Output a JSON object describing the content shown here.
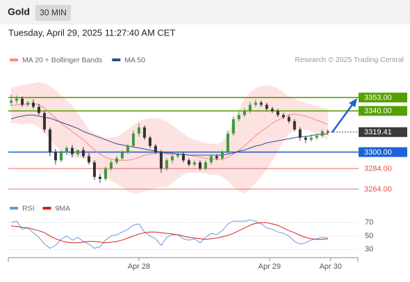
{
  "header": {
    "symbol": "Gold",
    "interval": "30 MIN",
    "timestamp": "Tuesday, April 29, 2025 11:27:40 AM CET"
  },
  "chart_data": [
    {
      "type": "candlestick",
      "legend": [
        {
          "name": "MA 20 + Bollinger Bands",
          "color": "#f08a8a"
        },
        {
          "name": "MA 50",
          "color": "#2b4d8c"
        }
      ],
      "credit": "Research © 2025 Trading Central",
      "xlim": [
        -0.5,
        62.4
      ],
      "xticks": [
        {
          "value": 23,
          "label": "Apr 28"
        },
        {
          "value": 46.5,
          "label": "Apr 29"
        },
        {
          "value": 57.5,
          "label": "Apr 30"
        }
      ],
      "ylim": [
        3257,
        3372
      ],
      "up_color": "#3c9a3c",
      "down_color": "#333333",
      "open": [
        3348,
        3350,
        3352,
        3346,
        3348,
        3344,
        3338,
        3322,
        3300,
        3292,
        3300,
        3304,
        3298,
        3302,
        3296,
        3290,
        3276,
        3274,
        3284,
        3290,
        3294,
        3300,
        3306,
        3318,
        3324,
        3314,
        3306,
        3300,
        3284,
        3292,
        3296,
        3298,
        3292,
        3288,
        3290,
        3284,
        3290,
        3296,
        3294,
        3300,
        3318,
        3332,
        3336,
        3340,
        3346,
        3348,
        3346,
        3342,
        3340,
        3336,
        3334,
        3330,
        3322,
        3314,
        3312,
        3314,
        3316,
        3320
      ],
      "high": [
        3356,
        3355,
        3354,
        3350,
        3351,
        3347,
        3340,
        3324,
        3303,
        3302,
        3306,
        3307,
        3301,
        3305,
        3299,
        3292,
        3279,
        3286,
        3292,
        3296,
        3302,
        3308,
        3321,
        3328,
        3326,
        3316,
        3308,
        3302,
        3294,
        3298,
        3300,
        3300,
        3294,
        3292,
        3292,
        3292,
        3298,
        3298,
        3302,
        3321,
        3335,
        3339,
        3343,
        3349,
        3351,
        3350,
        3348,
        3344,
        3342,
        3338,
        3336,
        3332,
        3324,
        3316,
        3317,
        3318,
        3322,
        3322
      ],
      "low": [
        3345,
        3347,
        3344,
        3344,
        3342,
        3336,
        3319,
        3296,
        3288,
        3290,
        3297,
        3295,
        3296,
        3294,
        3288,
        3273,
        3270,
        3272,
        3282,
        3288,
        3292,
        3298,
        3304,
        3315,
        3312,
        3304,
        3298,
        3280,
        3282,
        3289,
        3294,
        3290,
        3286,
        3286,
        3282,
        3282,
        3288,
        3292,
        3292,
        3298,
        3316,
        3330,
        3334,
        3338,
        3344,
        3344,
        3340,
        3338,
        3334,
        3332,
        3328,
        3320,
        3311,
        3309,
        3310,
        3312,
        3314,
        3317
      ],
      "close": [
        3350,
        3352,
        3346,
        3348,
        3344,
        3338,
        3322,
        3300,
        3292,
        3300,
        3304,
        3298,
        3302,
        3296,
        3290,
        3276,
        3274,
        3284,
        3290,
        3294,
        3300,
        3306,
        3318,
        3324,
        3314,
        3306,
        3300,
        3284,
        3292,
        3296,
        3298,
        3292,
        3288,
        3290,
        3284,
        3290,
        3296,
        3294,
        3300,
        3318,
        3332,
        3336,
        3340,
        3346,
        3348,
        3346,
        3342,
        3340,
        3336,
        3334,
        3330,
        3322,
        3314,
        3312,
        3314,
        3316,
        3320,
        3319.41
      ],
      "ma20": [
        3345,
        3346,
        3346,
        3347,
        3347,
        3346,
        3343,
        3338,
        3333,
        3328,
        3324,
        3320,
        3316,
        3312,
        3307,
        3302,
        3298,
        3295,
        3293,
        3292,
        3292,
        3292,
        3293,
        3295,
        3297,
        3298,
        3299,
        3299,
        3298,
        3298,
        3298,
        3298,
        3297,
        3296,
        3295,
        3294,
        3293,
        3293,
        3293,
        3295,
        3298,
        3302,
        3306,
        3311,
        3316,
        3320,
        3324,
        3328,
        3331,
        3334,
        3336,
        3337,
        3336,
        3335,
        3333,
        3331,
        3329,
        3327
      ],
      "upper_band": [
        3362,
        3364,
        3365,
        3366,
        3367,
        3368,
        3367,
        3364,
        3360,
        3355,
        3350,
        3345,
        3338,
        3330,
        3322,
        3318,
        3316,
        3314,
        3314,
        3315,
        3318,
        3322,
        3326,
        3330,
        3332,
        3333,
        3333,
        3332,
        3330,
        3326,
        3322,
        3318,
        3314,
        3312,
        3310,
        3309,
        3308,
        3308,
        3310,
        3318,
        3330,
        3342,
        3352,
        3358,
        3362,
        3364,
        3365,
        3364,
        3362,
        3358,
        3354,
        3352,
        3350,
        3348,
        3346,
        3345,
        3343,
        3342
      ],
      "lower_band": [
        3328,
        3328,
        3327,
        3328,
        3327,
        3324,
        3319,
        3312,
        3306,
        3301,
        3298,
        3295,
        3294,
        3294,
        3292,
        3286,
        3280,
        3276,
        3272,
        3269,
        3266,
        3262,
        3260,
        3260,
        3262,
        3263,
        3265,
        3266,
        3266,
        3270,
        3274,
        3278,
        3280,
        3280,
        3280,
        3279,
        3278,
        3278,
        3276,
        3272,
        3266,
        3262,
        3260,
        3264,
        3270,
        3276,
        3283,
        3292,
        3300,
        3310,
        3318,
        3322,
        3322,
        3322,
        3320,
        3317,
        3315,
        3312
      ],
      "ma50": [
        3332,
        3334,
        3335,
        3336,
        3336,
        3335,
        3334,
        3333,
        3331,
        3329,
        3327,
        3325,
        3323,
        3320,
        3318,
        3316,
        3314,
        3312,
        3310,
        3308,
        3307,
        3306,
        3305,
        3304,
        3303,
        3302,
        3301,
        3300,
        3299,
        3299,
        3298,
        3298,
        3297,
        3297,
        3297,
        3297,
        3297,
        3297,
        3297,
        3298,
        3299,
        3301,
        3302,
        3304,
        3306,
        3307,
        3309,
        3310,
        3311,
        3312,
        3313,
        3314,
        3315,
        3315,
        3316,
        3317,
        3317,
        3318
      ],
      "band_color": "#fde2e2",
      "levels": [
        {
          "value": 3353,
          "label": "3353.00",
          "color": "#55a000",
          "boxed": true
        },
        {
          "value": 3340,
          "label": "3340.00",
          "color": "#55a000",
          "boxed": true
        },
        {
          "value": 3319.41,
          "label": "3319.41",
          "color": "#3a3a3a",
          "boxed": true,
          "current": true
        },
        {
          "value": 3300,
          "label": "3300.00",
          "color": "#1f63d8",
          "boxed": true
        },
        {
          "value": 3284,
          "label": "3284.00",
          "color": "#e05050",
          "boxed": false
        },
        {
          "value": 3264,
          "label": "3264.00",
          "color": "#e05050",
          "boxed": false
        }
      ]
    },
    {
      "type": "line",
      "xlim": [
        -0.5,
        62.4
      ],
      "ylim": [
        20,
        80
      ],
      "yticks": [
        70,
        50,
        30
      ],
      "grid": true,
      "series": [
        {
          "name": "RSI",
          "color": "#6a97dc",
          "values": [
            70,
            72,
            60,
            62,
            55,
            48,
            38,
            32,
            36,
            45,
            50,
            44,
            48,
            42,
            38,
            32,
            34,
            44,
            50,
            52,
            56,
            60,
            66,
            68,
            56,
            50,
            46,
            36,
            48,
            52,
            52,
            46,
            44,
            46,
            40,
            48,
            54,
            52,
            58,
            68,
            72,
            72,
            72,
            74,
            72,
            68,
            62,
            60,
            56,
            54,
            50,
            42,
            38,
            40,
            44,
            46,
            48,
            47
          ]
        },
        {
          "name": "9MA",
          "color": "#d81e1e",
          "values": [
            65,
            64,
            63,
            62,
            60,
            58,
            55,
            50,
            46,
            43,
            41,
            40,
            40,
            41,
            42,
            42,
            41,
            40,
            41,
            42,
            44,
            47,
            50,
            53,
            55,
            56,
            56,
            55,
            54,
            53,
            52,
            50,
            48,
            47,
            46,
            45,
            46,
            47,
            49,
            51,
            54,
            58,
            62,
            66,
            69,
            70,
            70,
            68,
            66,
            62,
            58,
            55,
            51,
            48,
            46,
            45,
            45,
            46
          ]
        }
      ]
    }
  ]
}
